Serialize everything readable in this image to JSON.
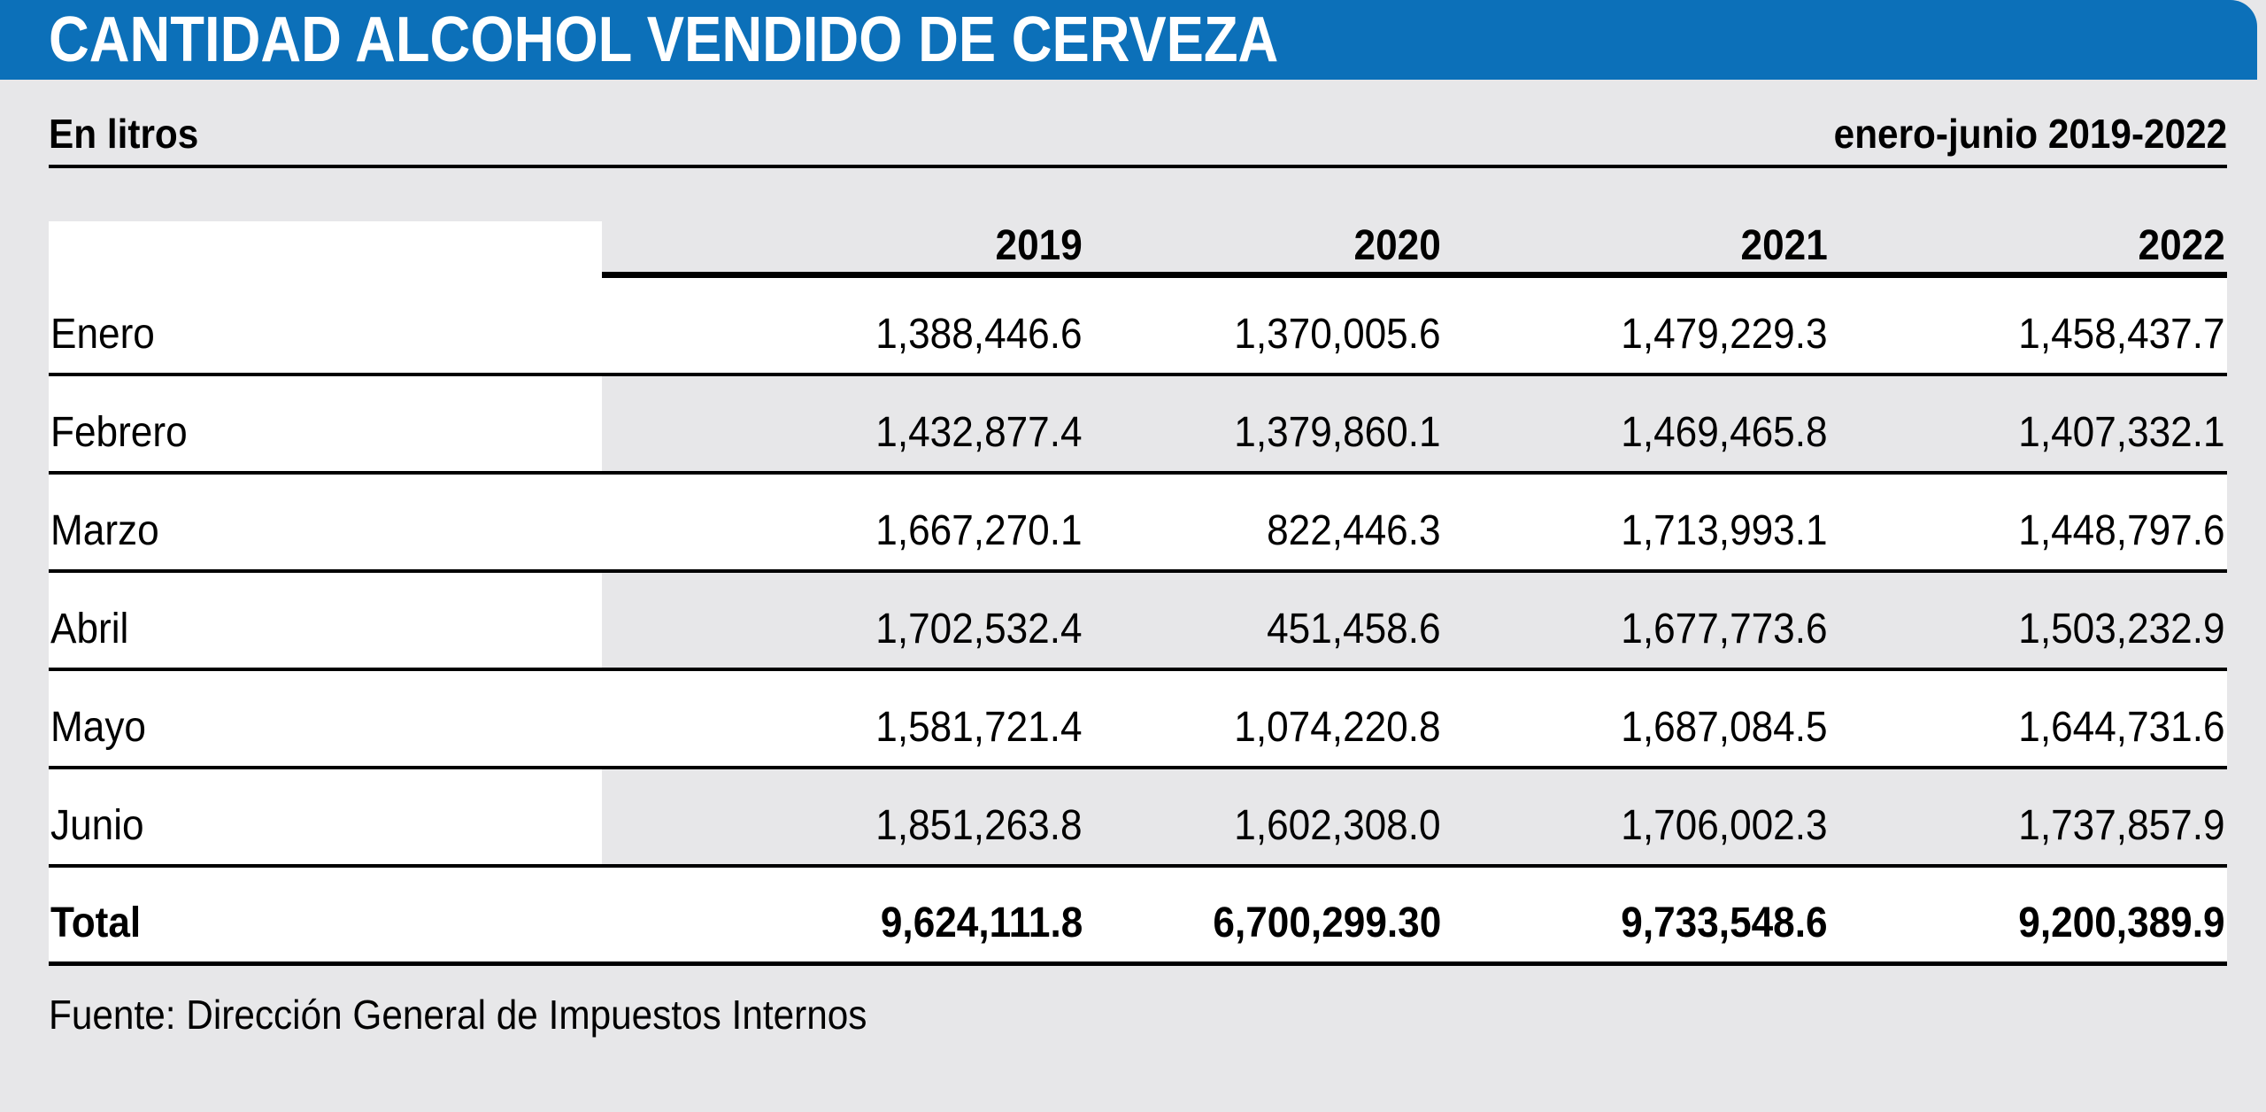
{
  "title": "CANTIDAD ALCOHOL VENDIDO DE CERVEZA",
  "subtitle_left": "En litros",
  "subtitle_right": "enero-junio 2019-2022",
  "source": "Fuente: Dirección General de Impuestos Internos",
  "colors": {
    "header_blue": "#0c70b9",
    "page_gray": "#e7e7e9",
    "row_white": "#ffffff",
    "text_black": "#000000"
  },
  "table": {
    "column_headers": [
      "2019",
      "2020",
      "2021",
      "2022"
    ],
    "rows": [
      {
        "label": "Enero",
        "values": [
          "1,388,446.6",
          "1,370,005.6",
          "1,479,229.3",
          "1,458,437.7"
        ]
      },
      {
        "label": "Febrero",
        "values": [
          "1,432,877.4",
          "1,379,860.1",
          "1,469,465.8",
          "1,407,332.1"
        ]
      },
      {
        "label": "Marzo",
        "values": [
          "1,667,270.1",
          "822,446.3",
          "1,713,993.1",
          "1,448,797.6"
        ]
      },
      {
        "label": "Abril",
        "values": [
          "1,702,532.4",
          "451,458.6",
          "1,677,773.6",
          "1,503,232.9"
        ]
      },
      {
        "label": "Mayo",
        "values": [
          "1,581,721.4",
          "1,074,220.8",
          "1,687,084.5",
          "1,644,731.6"
        ]
      },
      {
        "label": "Junio",
        "values": [
          "1,851,263.8",
          "1,602,308.0",
          "1,706,002.3",
          "1,737,857.9"
        ]
      },
      {
        "label": "Total",
        "values": [
          "9,624,111.8",
          "6,700,299.30",
          "9,733,548.6",
          "9,200,389.9"
        ]
      }
    ]
  },
  "chart_data": {
    "type": "table",
    "title": "CANTIDAD ALCOHOL VENDIDO DE CERVEZA",
    "units": "litros",
    "period": "enero-junio 2019-2022",
    "categories": [
      "Enero",
      "Febrero",
      "Marzo",
      "Abril",
      "Mayo",
      "Junio"
    ],
    "series": [
      {
        "name": "2019",
        "values": [
          1388446.6,
          1432877.4,
          1667270.1,
          1702532.4,
          1581721.4,
          1851263.8
        ],
        "total": 9624111.8
      },
      {
        "name": "2020",
        "values": [
          1370005.6,
          1379860.1,
          822446.3,
          451458.6,
          1074220.8,
          1602308.0
        ],
        "total": 6700299.3
      },
      {
        "name": "2021",
        "values": [
          1479229.3,
          1469465.8,
          1713993.1,
          1677773.6,
          1687084.5,
          1706002.3
        ],
        "total": 9733548.6
      },
      {
        "name": "2022",
        "values": [
          1458437.7,
          1407332.1,
          1448797.6,
          1503232.9,
          1644731.6,
          1737857.9
        ],
        "total": 9200389.9
      }
    ],
    "source": "Fuente: Dirección General de Impuestos Internos"
  }
}
